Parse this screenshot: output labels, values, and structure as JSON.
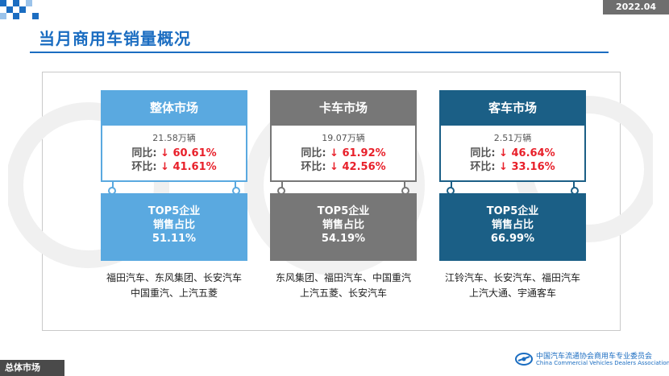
{
  "header": {
    "date_badge": "2022.04",
    "title": "当月商用车销量概况"
  },
  "colors": {
    "title_blue": "#1b6dc1",
    "overall": "#5aa9e0",
    "truck": "#777777",
    "bus": "#1b5f86",
    "decline_red": "#e8202a"
  },
  "labels": {
    "yoy": "同比:",
    "mom": "环比:",
    "top5_line1": "TOP5企业",
    "top5_line2": "销售占比",
    "down_arrow": "↓"
  },
  "columns": [
    {
      "title": "整体市场",
      "total": "21.58万辆",
      "yoy": "60.61%",
      "mom": "41.61%",
      "top5_share": "51.11%",
      "brands_line1": "福田汽车、东风集团、长安汽车",
      "brands_line2": "中国重汽、上汽五菱"
    },
    {
      "title": "卡车市场",
      "total": "19.07万辆",
      "yoy": "61.92%",
      "mom": "42.56%",
      "top5_share": "54.19%",
      "brands_line1": "东风集团、福田汽车、中国重汽",
      "brands_line2": "上汽五菱、长安汽车"
    },
    {
      "title": "客车市场",
      "total": "2.51万辆",
      "yoy": "46.64%",
      "mom": "33.16%",
      "top5_share": "66.99%",
      "brands_line1": "江铃汽车、长安汽车、福田汽车",
      "brands_line2": "上汽大通、宇通客车"
    }
  ],
  "footer": {
    "section_tag": "总体市场",
    "org_cn": "中国汽车流通协会商用车专业委员会",
    "org_en": "China Commercial Vehicles Dealers Association",
    "org_logo_icon": "ccvda-logo-icon"
  }
}
